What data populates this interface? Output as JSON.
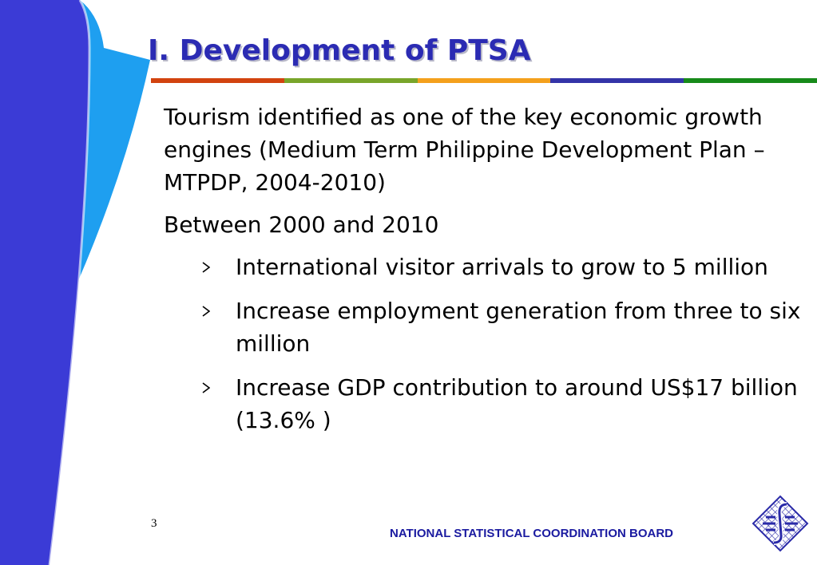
{
  "slide": {
    "title": "I. Development of PTSA",
    "rule_colors": [
      "#d2430f",
      "#79a52a",
      "#f4a01c",
      "#3434a8",
      "#178a1a"
    ],
    "paragraphs": [
      "Tourism identified as one of the key economic growth engines (Medium Term Philippine Development Plan –MTPDP, 2004-2010)",
      "Between 2000 and 2010"
    ],
    "bullets": [
      "International visitor arrivals to grow to 5 million",
      "Increase employment generation from three to six million",
      "Increase GDP contribution to around US$17 billion (13.6% )"
    ],
    "bullet_icon": "arrow-bullet-icon",
    "page_number": "3",
    "footer": "NATIONAL STATISTICAL COORDINATION BOARD",
    "logo_icon": "nscb-logo-icon"
  },
  "colors": {
    "title": "#2b2bb3",
    "footer": "#1a1aa0",
    "side_dark": "#3b3bd6",
    "side_light": "#1e9ff0"
  }
}
